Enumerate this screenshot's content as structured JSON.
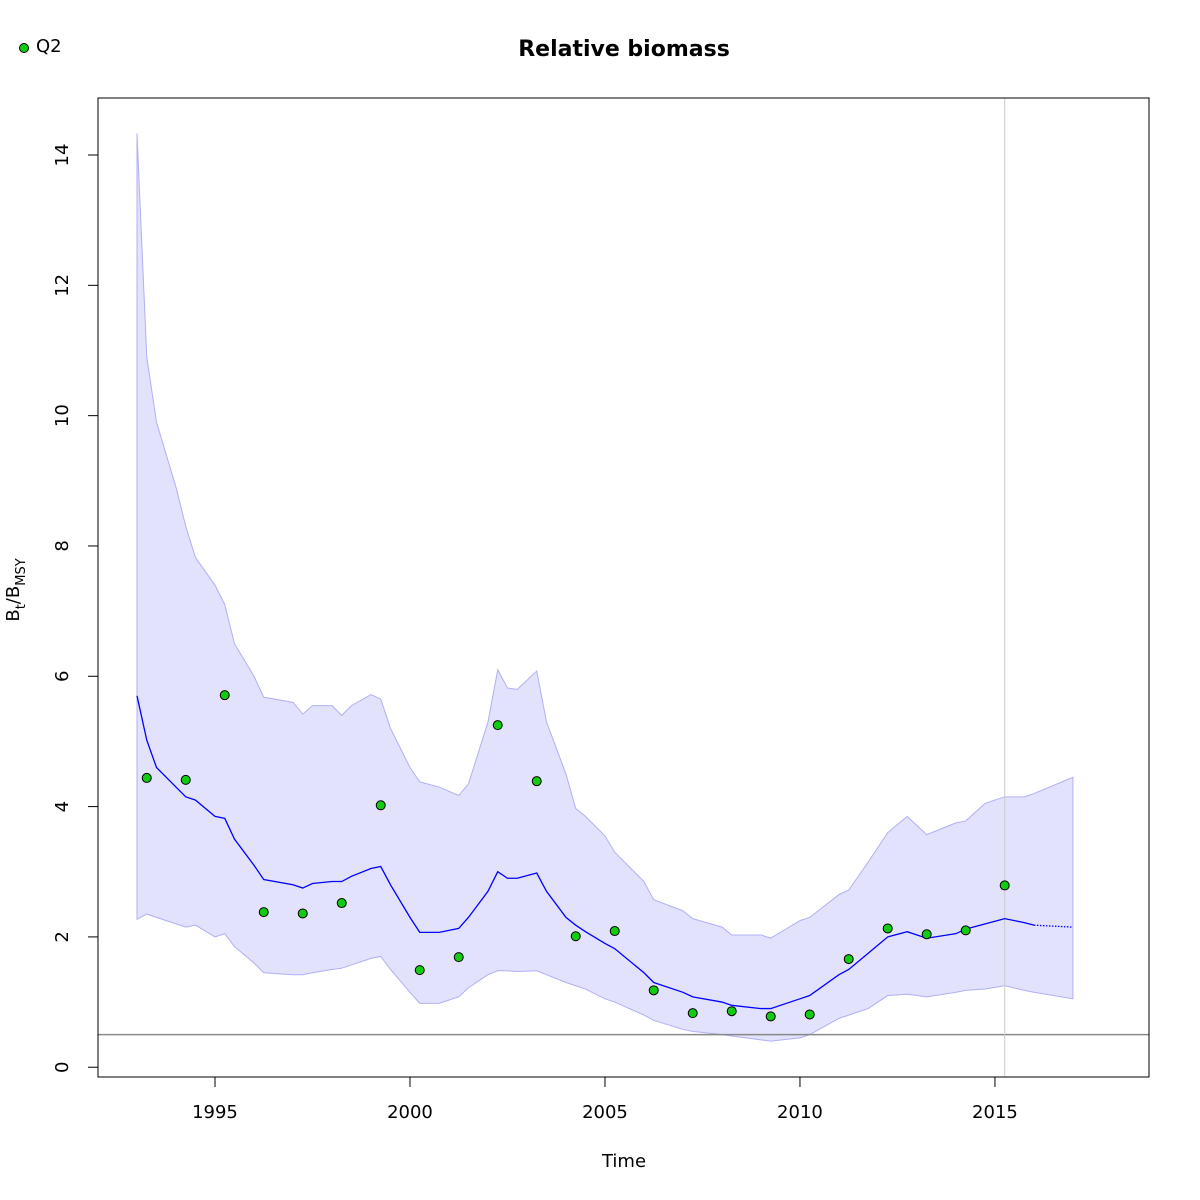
{
  "chart_data": {
    "type": "line",
    "title": "Relative biomass",
    "xlabel": "Time",
    "ylabel": [
      "B",
      "t",
      "/B",
      "MSY"
    ],
    "xlim": [
      1992.0,
      2018.95
    ],
    "ylim": [
      -0.15,
      14.875
    ],
    "xticks": [
      1995,
      2000,
      2005,
      2010,
      2015
    ],
    "yticks": [
      0,
      2,
      4,
      6,
      8,
      10,
      12,
      14
    ],
    "x": [
      1993,
      1993.25,
      1993.5,
      1994,
      1994.25,
      1994.5,
      1995,
      1995.25,
      1995.5,
      1996,
      1996.25,
      1997,
      1997.25,
      1997.5,
      1998,
      1998.25,
      1998.5,
      1999,
      1999.25,
      1999.5,
      2000,
      2000.25,
      2000.75,
      2001.25,
      2001.5,
      2002,
      2002.25,
      2002.5,
      2002.75,
      2003.25,
      2003.5,
      2004,
      2004.25,
      2004.5,
      2005,
      2005.25,
      2006,
      2006.25,
      2007,
      2007.25,
      2008,
      2008.25,
      2009,
      2009.25,
      2010,
      2010.25,
      2011,
      2011.25,
      2011.75,
      2012.25,
      2012.75,
      2013.25,
      2014,
      2014.25,
      2014.75,
      2015.25,
      2015.75,
      2016,
      2017
    ],
    "estimate": [
      5.7,
      5.02,
      4.6,
      4.3,
      4.15,
      4.1,
      3.85,
      3.82,
      3.5,
      3.1,
      2.88,
      2.8,
      2.75,
      2.82,
      2.85,
      2.85,
      2.93,
      3.05,
      3.08,
      2.8,
      2.3,
      2.07,
      2.07,
      2.13,
      2.3,
      2.7,
      3.0,
      2.9,
      2.9,
      2.98,
      2.7,
      2.3,
      2.18,
      2.08,
      1.9,
      1.82,
      1.45,
      1.3,
      1.15,
      1.08,
      1.0,
      0.95,
      0.9,
      0.9,
      1.05,
      1.1,
      1.42,
      1.5,
      1.75,
      2.0,
      2.08,
      1.98,
      2.05,
      2.12,
      2.2,
      2.28,
      2.22,
      2.18,
      null
    ],
    "forecast": [
      null,
      null,
      null,
      null,
      null,
      null,
      null,
      null,
      null,
      null,
      null,
      null,
      null,
      null,
      null,
      null,
      null,
      null,
      null,
      null,
      null,
      null,
      null,
      null,
      null,
      null,
      null,
      null,
      null,
      null,
      null,
      null,
      null,
      null,
      null,
      null,
      null,
      null,
      null,
      null,
      null,
      null,
      null,
      null,
      null,
      null,
      null,
      null,
      null,
      null,
      null,
      null,
      null,
      null,
      null,
      null,
      null,
      2.18,
      2.15
    ],
    "lower": [
      2.27,
      2.35,
      2.3,
      2.2,
      2.15,
      2.18,
      2.0,
      2.05,
      1.85,
      1.6,
      1.45,
      1.42,
      1.42,
      1.45,
      1.5,
      1.52,
      1.57,
      1.67,
      1.7,
      1.5,
      1.15,
      0.98,
      0.98,
      1.08,
      1.22,
      1.42,
      1.48,
      1.48,
      1.47,
      1.48,
      1.42,
      1.3,
      1.25,
      1.2,
      1.05,
      1.0,
      0.8,
      0.72,
      0.58,
      0.55,
      0.5,
      0.48,
      0.42,
      0.4,
      0.45,
      0.5,
      0.75,
      0.8,
      0.9,
      1.1,
      1.12,
      1.08,
      1.15,
      1.18,
      1.2,
      1.25,
      1.18,
      1.15,
      1.05
    ],
    "upper": [
      14.33,
      10.9,
      9.9,
      8.9,
      8.3,
      7.82,
      7.4,
      7.1,
      6.5,
      6.0,
      5.68,
      5.6,
      5.42,
      5.55,
      5.55,
      5.4,
      5.55,
      5.72,
      5.65,
      5.2,
      4.6,
      4.38,
      4.3,
      4.17,
      4.35,
      5.3,
      6.1,
      5.82,
      5.8,
      6.08,
      5.3,
      4.5,
      3.97,
      3.85,
      3.55,
      3.3,
      2.85,
      2.57,
      2.4,
      2.28,
      2.15,
      2.03,
      2.03,
      1.98,
      2.25,
      2.3,
      2.65,
      2.72,
      3.15,
      3.6,
      3.85,
      3.57,
      3.75,
      3.78,
      4.05,
      4.15,
      4.15,
      4.2,
      4.45
    ],
    "line_color": "#0000ff",
    "band_color": "#e2e2fc",
    "series": [
      {
        "name": "Q2",
        "color": "#11cc11",
        "x": [
          1993.25,
          1994.25,
          1995.25,
          1996.25,
          1997.25,
          1998.25,
          1999.25,
          2000.25,
          2001.25,
          2002.25,
          2003.25,
          2004.25,
          2005.25,
          2006.25,
          2007.25,
          2008.25,
          2009.25,
          2010.25,
          2011.25,
          2012.25,
          2013.25,
          2014.25,
          2015.25
        ],
        "values": [
          4.44,
          4.41,
          5.71,
          2.38,
          2.36,
          2.52,
          4.02,
          1.49,
          1.69,
          5.25,
          4.39,
          2.01,
          2.09,
          1.18,
          0.83,
          0.86,
          0.78,
          0.81,
          1.66,
          2.13,
          2.04,
          2.1,
          2.79
        ]
      }
    ],
    "hline": 0.5,
    "vline": 2015.25
  }
}
